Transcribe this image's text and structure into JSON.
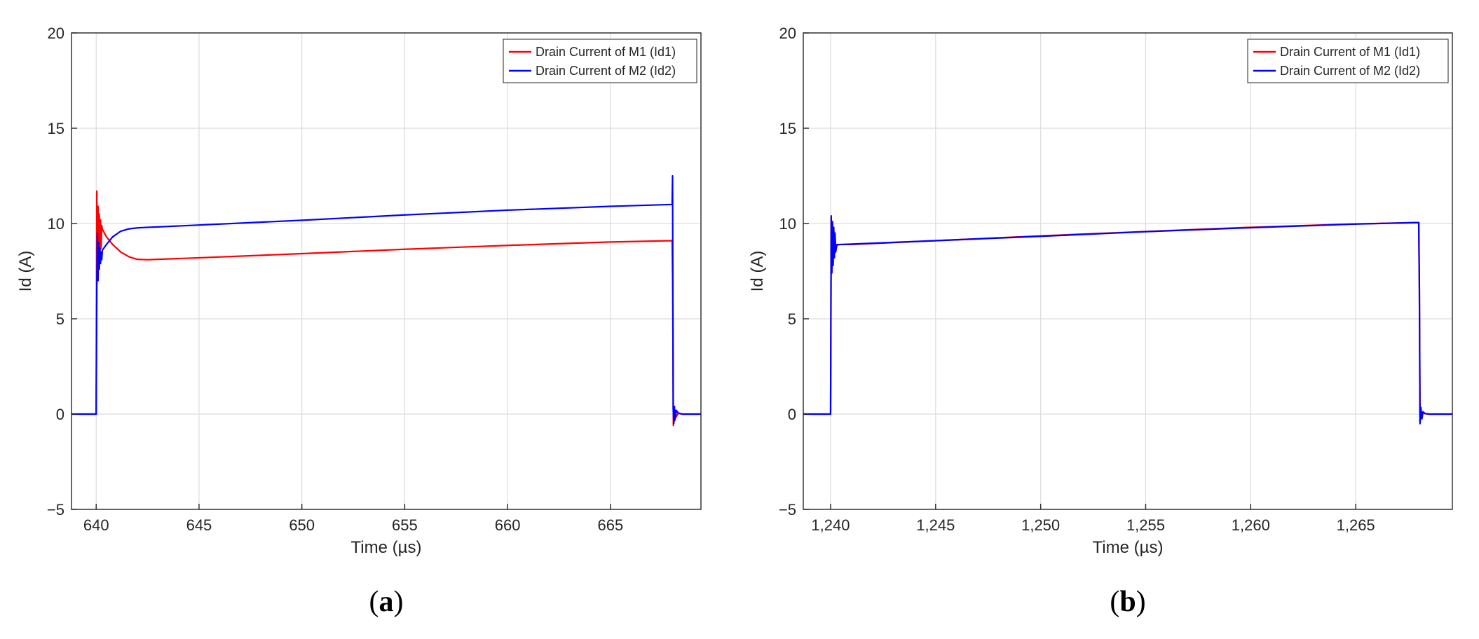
{
  "chart_data": [
    {
      "type": "line",
      "panel_label": "(a)",
      "xlabel": "Time (µs)",
      "ylabel": "Id (A)",
      "xlim": [
        638.8,
        669.4
      ],
      "ylim": [
        -5,
        20
      ],
      "xticks": [
        640,
        645,
        650,
        655,
        660,
        665
      ],
      "xtick_labels": [
        "640",
        "645",
        "650",
        "655",
        "660",
        "665"
      ],
      "yticks": [
        -5,
        0,
        5,
        10,
        15,
        20
      ],
      "ytick_labels": [
        "−5",
        "0",
        "5",
        "10",
        "15",
        "20"
      ],
      "grid": true,
      "legend_position": "top-right",
      "series": [
        {
          "name": "Drain Current of M1 (Id1)",
          "color": "#ff0000",
          "x": [
            638.8,
            640.0,
            640.03,
            640.06,
            640.09,
            640.12,
            640.15,
            640.18,
            640.21,
            640.24,
            640.27,
            640.3,
            640.5,
            640.8,
            641.2,
            641.6,
            642.0,
            642.5,
            643.0,
            645.0,
            650.0,
            655.0,
            660.0,
            665.0,
            668.0,
            668.03,
            668.06,
            668.09,
            668.12,
            668.15,
            668.2,
            668.3,
            668.5,
            669.4
          ],
          "y": [
            0,
            0,
            11.7,
            7.2,
            10.9,
            7.9,
            10.5,
            8.4,
            10.2,
            8.7,
            9.9,
            9.7,
            9.3,
            8.9,
            8.5,
            8.25,
            8.12,
            8.1,
            8.12,
            8.2,
            8.42,
            8.65,
            8.85,
            9.03,
            9.1,
            6.3,
            -0.6,
            0.3,
            -0.35,
            0.2,
            -0.15,
            0.05,
            0,
            0
          ]
        },
        {
          "name": "Drain Current of M2 (Id2)",
          "color": "#0000ff",
          "x": [
            638.8,
            640.0,
            640.03,
            640.06,
            640.09,
            640.12,
            640.15,
            640.18,
            640.21,
            640.24,
            640.27,
            640.3,
            640.5,
            640.8,
            641.2,
            641.6,
            642.0,
            642.5,
            643.0,
            645.0,
            650.0,
            655.0,
            660.0,
            665.0,
            668.0,
            668.02,
            668.05,
            668.08,
            668.11,
            668.14,
            668.2,
            668.3,
            668.5,
            669.4
          ],
          "y": [
            0,
            0,
            6.5,
            9.5,
            7.0,
            9.0,
            7.6,
            8.7,
            7.9,
            8.5,
            8.1,
            8.6,
            8.9,
            9.3,
            9.6,
            9.72,
            9.77,
            9.8,
            9.82,
            9.92,
            10.17,
            10.45,
            10.7,
            10.9,
            11.0,
            12.5,
            0.3,
            -0.5,
            0.4,
            -0.3,
            0.2,
            0.05,
            0,
            0
          ]
        }
      ]
    },
    {
      "type": "line",
      "panel_label": "(b)",
      "xlabel": "Time (µs)",
      "ylabel": "Id (A)",
      "xlim": [
        1238.7,
        1269.6
      ],
      "ylim": [
        -5,
        20
      ],
      "xticks": [
        1240,
        1245,
        1250,
        1255,
        1260,
        1265
      ],
      "xtick_labels": [
        "1,240",
        "1,245",
        "1,250",
        "1,255",
        "1,260",
        "1,265"
      ],
      "yticks": [
        -5,
        0,
        5,
        10,
        15,
        20
      ],
      "ytick_labels": [
        "−5",
        "0",
        "5",
        "10",
        "15",
        "20"
      ],
      "grid": true,
      "legend_position": "top-right",
      "series": [
        {
          "name": "Drain Current of M1 (Id1)",
          "color": "#ff0000",
          "x": [
            1238.7,
            1240.0,
            1240.03,
            1240.06,
            1240.09,
            1240.12,
            1240.15,
            1240.18,
            1240.21,
            1240.24,
            1240.3,
            1240.5,
            1241.0,
            1245.0,
            1250.0,
            1255.0,
            1260.0,
            1265.0,
            1268.0,
            1268.03,
            1268.06,
            1268.1,
            1268.15,
            1268.2,
            1268.3,
            1268.5,
            1269.6
          ],
          "y": [
            0,
            0,
            10.3,
            7.5,
            10.0,
            7.9,
            9.7,
            8.3,
            9.4,
            8.6,
            8.9,
            8.9,
            8.9,
            9.1,
            9.35,
            9.58,
            9.8,
            9.98,
            10.05,
            6.5,
            -0.4,
            0.3,
            -0.2,
            0.1,
            0.02,
            0,
            0
          ]
        },
        {
          "name": "Drain Current of M2 (Id2)",
          "color": "#0000ff",
          "x": [
            1238.7,
            1240.0,
            1240.03,
            1240.06,
            1240.09,
            1240.12,
            1240.15,
            1240.18,
            1240.21,
            1240.24,
            1240.3,
            1240.5,
            1241.0,
            1245.0,
            1250.0,
            1255.0,
            1260.0,
            1265.0,
            1268.0,
            1268.03,
            1268.06,
            1268.1,
            1268.15,
            1268.2,
            1268.3,
            1268.5,
            1269.6
          ],
          "y": [
            0,
            0,
            10.4,
            7.4,
            10.1,
            7.8,
            9.8,
            8.2,
            9.5,
            8.5,
            8.88,
            8.9,
            8.92,
            9.1,
            9.33,
            9.57,
            9.78,
            9.97,
            10.05,
            6.8,
            -0.5,
            0.35,
            -0.25,
            0.12,
            0.03,
            0,
            0
          ]
        }
      ]
    }
  ]
}
